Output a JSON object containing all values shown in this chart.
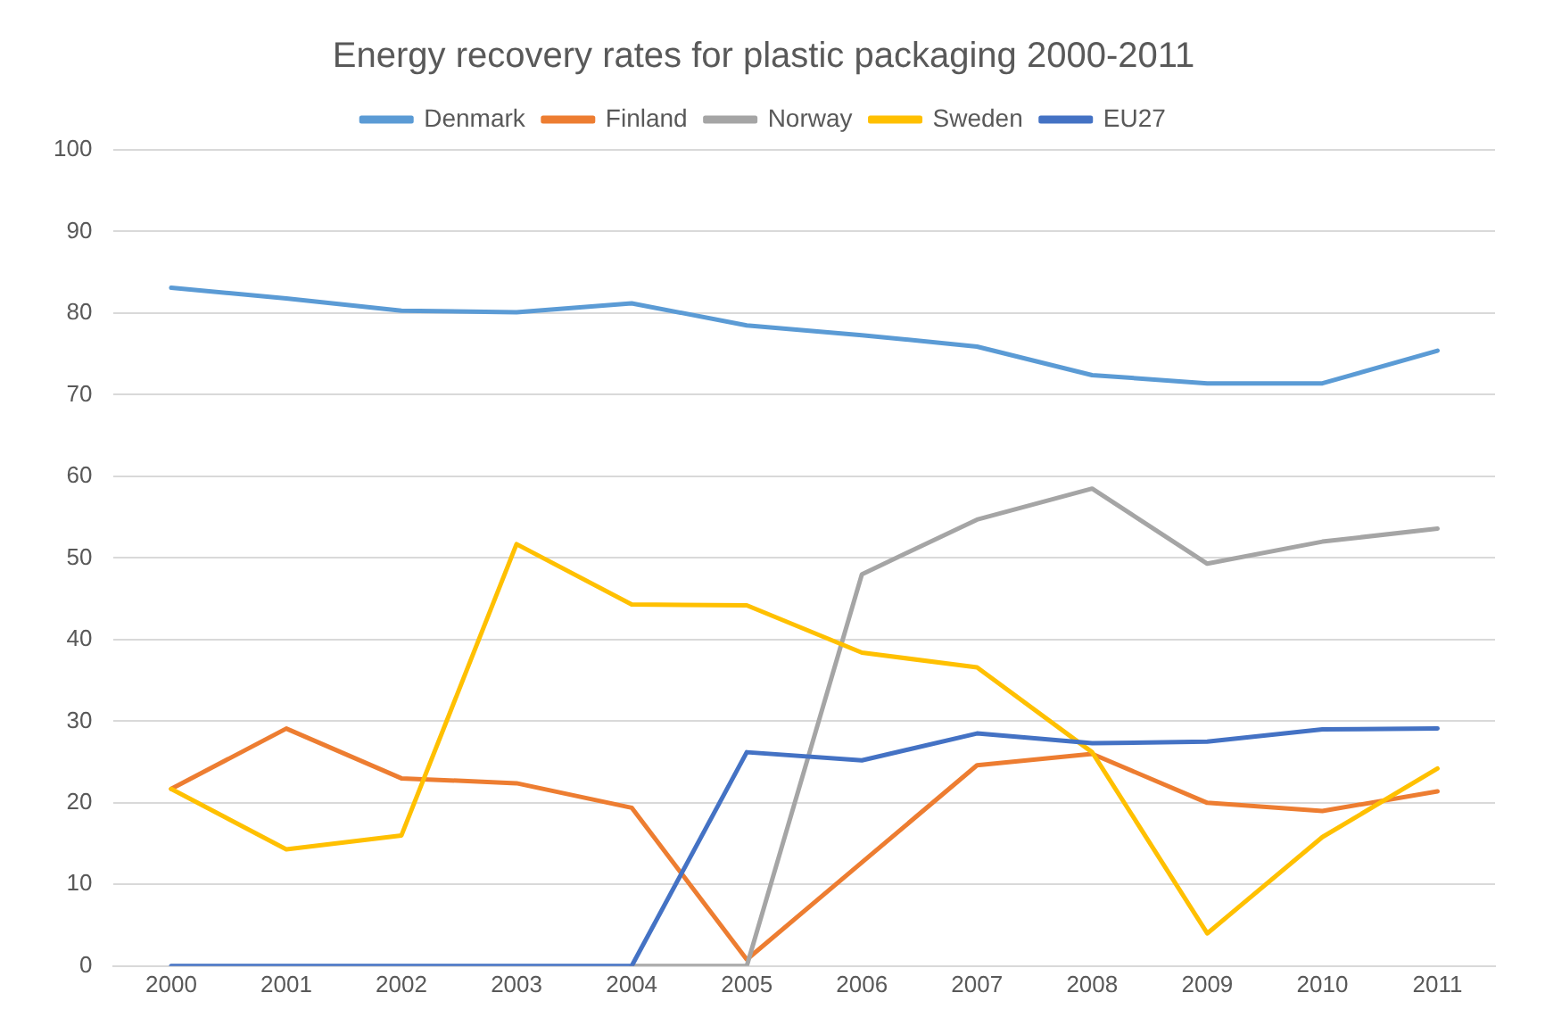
{
  "chart_data": {
    "type": "line",
    "title": "Energy recovery rates for plastic packaging 2000-2011",
    "categories": [
      "2000",
      "2001",
      "2002",
      "2003",
      "2004",
      "2005",
      "2006",
      "2007",
      "2008",
      "2009",
      "2010",
      "2011"
    ],
    "series": [
      {
        "name": "Denmark",
        "color": "#5b9bd5",
        "values": [
          83.1,
          81.8,
          80.3,
          80.1,
          81.2,
          78.5,
          77.3,
          75.9,
          72.4,
          71.4,
          71.4,
          75.4
        ]
      },
      {
        "name": "Finland",
        "color": "#ed7d31",
        "values": [
          21.7,
          29.1,
          23,
          22.4,
          19.4,
          0.8,
          12.7,
          24.6,
          26,
          20,
          19,
          21.4
        ]
      },
      {
        "name": "Norway",
        "color": "#a5a5a5",
        "values": [
          null,
          null,
          null,
          null,
          0,
          0,
          48,
          54.7,
          58.5,
          49.3,
          52,
          53.6
        ]
      },
      {
        "name": "Sweden",
        "color": "#ffc000",
        "values": [
          21.7,
          14.3,
          16,
          51.7,
          44.3,
          44.2,
          38.4,
          36.6,
          26.2,
          4,
          15.8,
          24.2
        ]
      },
      {
        "name": "EU27",
        "color": "#4472c4",
        "values": [
          0,
          0,
          0,
          0,
          0,
          26.2,
          25.2,
          28.5,
          27.3,
          27.5,
          29,
          29.1
        ]
      }
    ],
    "ylim": [
      0,
      100
    ],
    "yticks": [
      0,
      10,
      20,
      30,
      40,
      50,
      60,
      70,
      80,
      90,
      100
    ],
    "grid": "y",
    "legend": "top",
    "marker": "none",
    "line_style": "solid"
  }
}
